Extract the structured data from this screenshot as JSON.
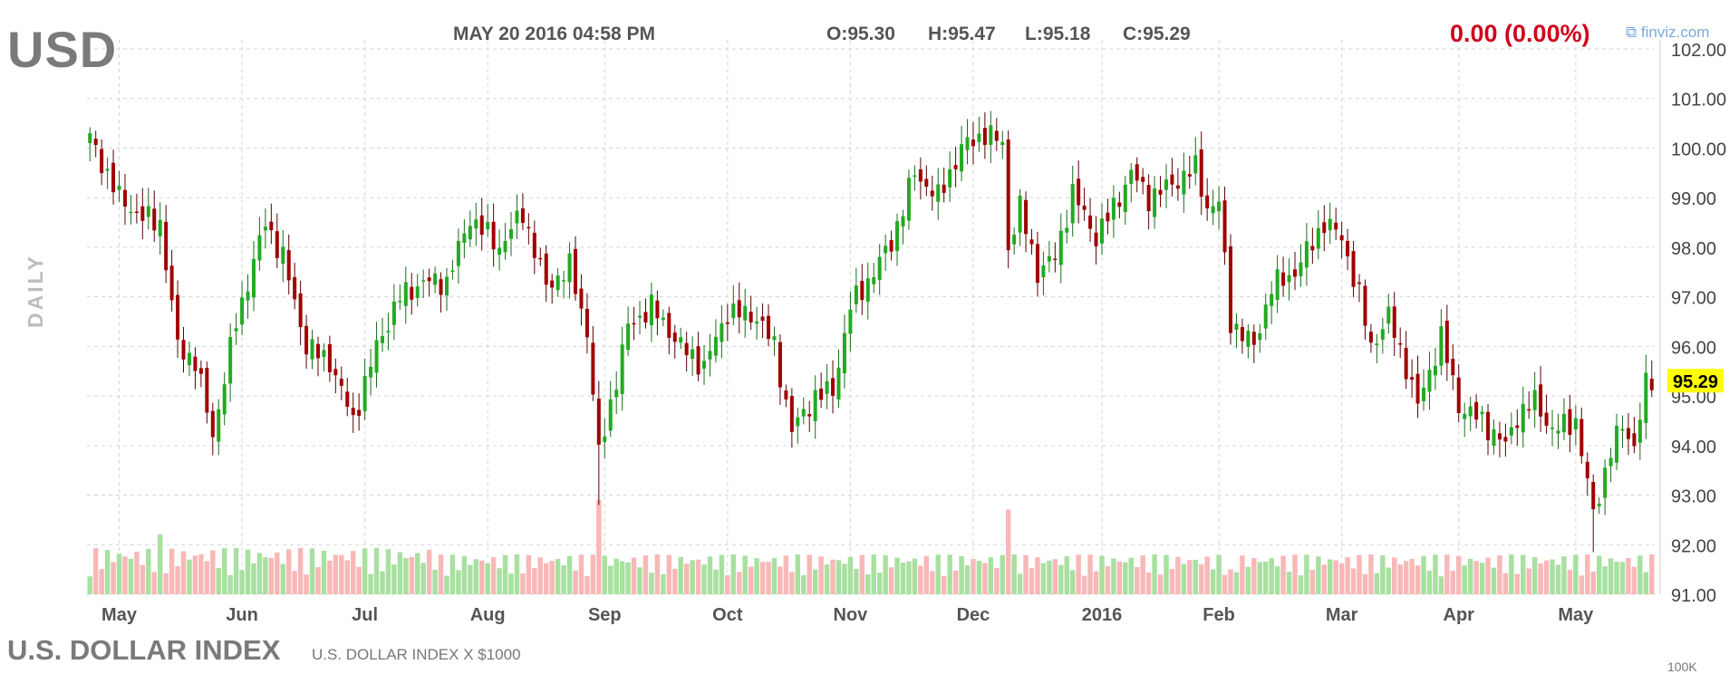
{
  "header": {
    "ticker": "USD",
    "datetime": "MAY 20 2016 04:58 PM",
    "open": "O:95.30",
    "high": "H:95.47",
    "low": "L:95.18",
    "close": "C:95.29",
    "change": "0.00 (0.00%)",
    "brand": "⧉ finviz.com"
  },
  "side_label": "DAILY",
  "footer": {
    "name": "U.S. DOLLAR INDEX",
    "subtitle": "U.S. DOLLAR INDEX X $1000",
    "clipped_label": "100K"
  },
  "colors": {
    "up": "#22aa22",
    "down": "#a00000",
    "vol_up": "#a8e0a0",
    "vol_down": "#f8b8b8",
    "grid": "#d6d6d6",
    "last_price_bg": "#ffff00",
    "change": "#d0021b"
  },
  "chart_data": {
    "type": "candlestick",
    "frequency": "daily",
    "y_ticks": [
      102,
      101,
      100,
      99,
      98,
      97,
      96,
      95,
      94,
      93,
      92,
      91
    ],
    "y_tick_labels": [
      "102.00",
      "101.00",
      "100.00",
      "99.00",
      "98.00",
      "97.00",
      "96.00",
      "95.00",
      "94.00",
      "93.00",
      "92.00",
      "91.00"
    ],
    "ylim": [
      91,
      102
    ],
    "last_price": "95.29",
    "x_month_labels": [
      "May",
      "Jun",
      "Jul",
      "Aug",
      "Sep",
      "Oct",
      "Nov",
      "Dec",
      "2016",
      "Feb",
      "Mar",
      "Apr",
      "May"
    ],
    "x_month_start_index": [
      5,
      26,
      47,
      68,
      88,
      109,
      130,
      151,
      173,
      193,
      214,
      234,
      254
    ],
    "total_bars": 268,
    "close_anchors": [
      [
        0,
        100.2
      ],
      [
        5,
        99.0
      ],
      [
        9,
        98.6
      ],
      [
        12,
        98.5
      ],
      [
        15,
        96.0
      ],
      [
        18,
        95.7
      ],
      [
        21,
        94.2
      ],
      [
        25,
        96.5
      ],
      [
        30,
        98.5
      ],
      [
        33,
        97.8
      ],
      [
        37,
        96.0
      ],
      [
        41,
        95.7
      ],
      [
        45,
        94.5
      ],
      [
        49,
        96.0
      ],
      [
        53,
        97.0
      ],
      [
        57,
        97.3
      ],
      [
        61,
        97.3
      ],
      [
        65,
        98.6
      ],
      [
        70,
        98.0
      ],
      [
        74,
        98.7
      ],
      [
        78,
        97.2
      ],
      [
        82,
        97.6
      ],
      [
        85,
        96.3
      ],
      [
        87,
        93.8
      ],
      [
        92,
        96.4
      ],
      [
        96,
        96.8
      ],
      [
        101,
        96.0
      ],
      [
        105,
        95.6
      ],
      [
        109,
        96.7
      ],
      [
        114,
        96.6
      ],
      [
        117,
        96.0
      ],
      [
        120,
        94.3
      ],
      [
        124,
        95.0
      ],
      [
        127,
        95.1
      ],
      [
        130,
        96.8
      ],
      [
        134,
        97.5
      ],
      [
        137,
        98.1
      ],
      [
        141,
        99.5
      ],
      [
        145,
        99.0
      ],
      [
        149,
        100.0
      ],
      [
        153,
        100.3
      ],
      [
        156,
        100.1
      ],
      [
        157,
        98.0
      ],
      [
        159,
        98.8
      ],
      [
        162,
        97.5
      ],
      [
        165,
        97.8
      ],
      [
        168,
        99.1
      ],
      [
        172,
        98.2
      ],
      [
        175,
        98.8
      ],
      [
        178,
        99.5
      ],
      [
        181,
        99.0
      ],
      [
        184,
        99.2
      ],
      [
        189,
        99.6
      ],
      [
        191,
        98.8
      ],
      [
        193,
        98.9
      ],
      [
        195,
        96.5
      ],
      [
        199,
        96.0
      ],
      [
        202,
        97.2
      ],
      [
        206,
        97.5
      ],
      [
        211,
        98.5
      ],
      [
        214,
        98.2
      ],
      [
        217,
        97.0
      ],
      [
        219,
        96.0
      ],
      [
        222,
        96.6
      ],
      [
        225,
        95.6
      ],
      [
        227,
        94.8
      ],
      [
        231,
        96.2
      ],
      [
        234,
        94.8
      ],
      [
        238,
        94.5
      ],
      [
        242,
        94.0
      ],
      [
        244,
        94.6
      ],
      [
        247,
        94.9
      ],
      [
        250,
        94.3
      ],
      [
        254,
        94.5
      ],
      [
        257,
        92.6
      ],
      [
        260,
        93.9
      ],
      [
        262,
        94.4
      ],
      [
        264,
        94.0
      ],
      [
        266,
        95.2
      ],
      [
        267,
        95.29
      ]
    ],
    "volume_spikes": [
      {
        "index": 87,
        "rel": 0.95
      },
      {
        "index": 157,
        "rel": 0.85
      },
      {
        "index": 12,
        "rel": 0.6
      },
      {
        "index": 195,
        "rel": 0.25
      },
      {
        "index": 224,
        "rel": 0.3
      }
    ]
  }
}
